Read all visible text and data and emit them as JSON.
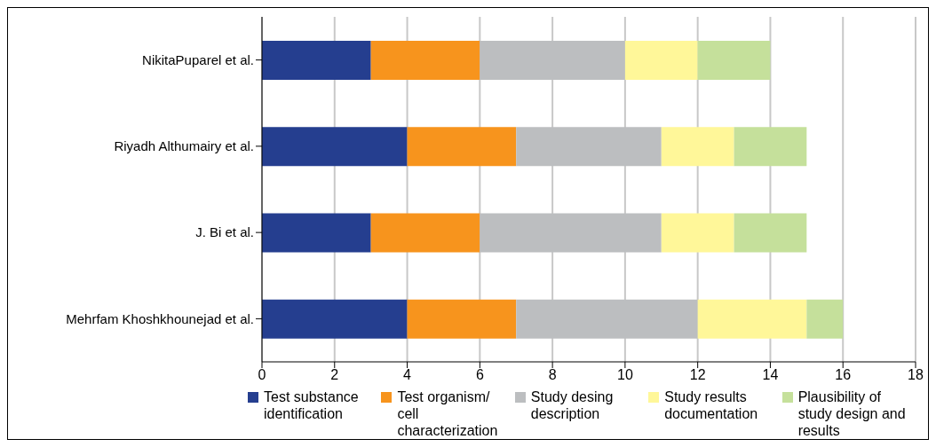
{
  "chart_data": {
    "type": "bar",
    "orientation": "horizontal",
    "stacked": true,
    "categories": [
      "NikitaPuparel et al.",
      "Riyadh Althumairy et al.",
      "J. Bi et al.",
      "Mehrfam Khoshkhounejad et al."
    ],
    "series": [
      {
        "name": "Test substance identification",
        "color": "#253e8f",
        "values": [
          3,
          4,
          3,
          4
        ]
      },
      {
        "name": "Test organism/ cell characterization",
        "color": "#f7941d",
        "values": [
          3,
          3,
          3,
          3
        ]
      },
      {
        "name": "Study desing description",
        "color": "#bcbec0",
        "values": [
          4,
          4,
          5,
          5
        ]
      },
      {
        "name": "Study results documentation",
        "color": "#fff799",
        "values": [
          2,
          2,
          2,
          3
        ]
      },
      {
        "name": "Plausibility of study design and results",
        "color": "#c5e09b",
        "values": [
          2,
          2,
          2,
          1
        ]
      }
    ],
    "xlim": [
      0,
      18
    ],
    "xticks": [
      0,
      2,
      4,
      6,
      8,
      10,
      12,
      14,
      16,
      18
    ],
    "grid": "x",
    "legend": "bottom"
  }
}
